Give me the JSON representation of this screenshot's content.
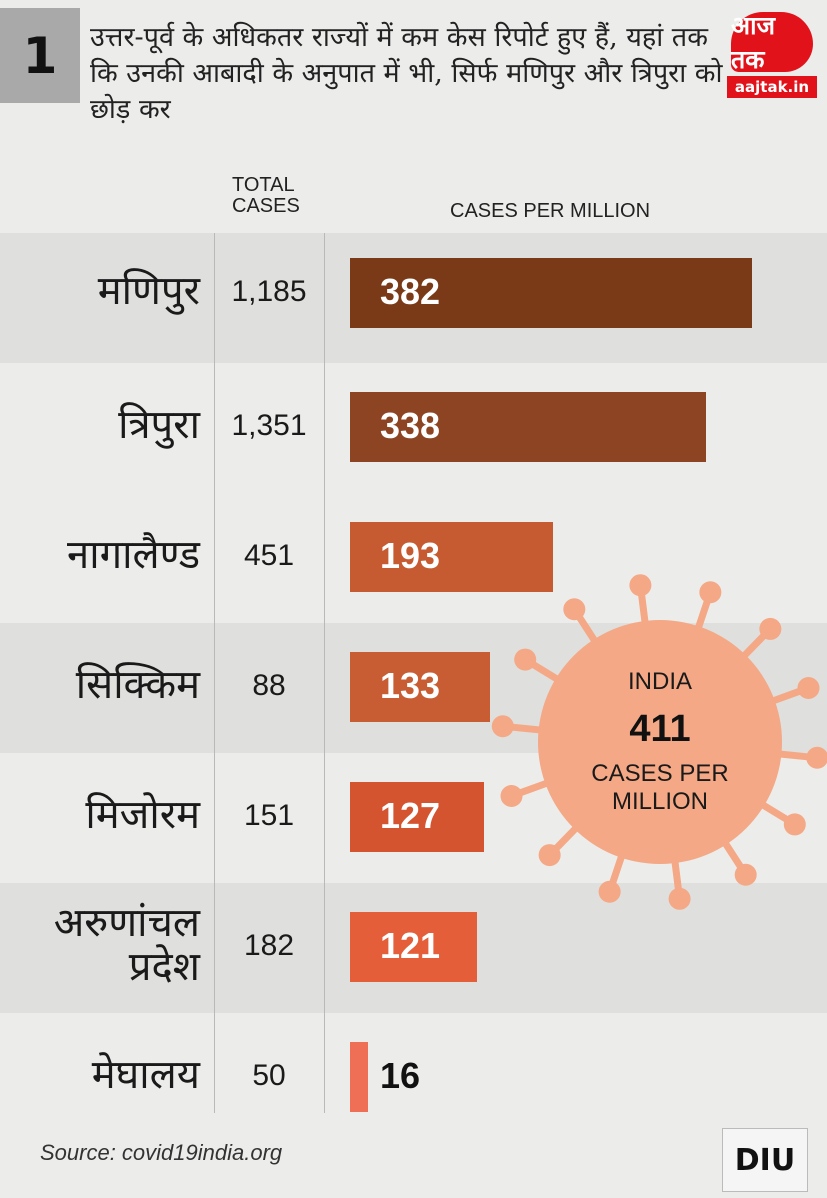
{
  "badge_number": "1",
  "headline": "उत्तर-पूर्व के अधिकतर राज्यों में कम केस रिपोर्ट हुए हैं, यहां तक कि उनकी आबादी के अनुपात में भी, सिर्फ मणिपुर और त्रिपुरा को छोड़ कर",
  "logo": {
    "mark": "आज तक",
    "url": "aajtak.in"
  },
  "column_headers": {
    "total": "TOTAL CASES",
    "per_million": "CASES PER MILLION"
  },
  "india_callout": {
    "top": "INDIA",
    "value": "411",
    "line1": "CASES PER",
    "line2": "MILLION",
    "color": "#f4a885"
  },
  "source": "Source: covid19india.org",
  "diu_logo": "DIU",
  "chart_data": {
    "type": "bar",
    "orientation": "horizontal",
    "categories": [
      "मणिपुर",
      "त्रिपुरा",
      "नागालैण्ड",
      "सिक्किम",
      "मिजोरम",
      "अरुणांचल प्रदेश",
      "मेघालय"
    ],
    "total_cases": [
      "1,185",
      "1,351",
      "451",
      "88",
      "151",
      "182",
      "50"
    ],
    "values": [
      382,
      338,
      193,
      133,
      127,
      121,
      16
    ],
    "labels": [
      "382",
      "338",
      "193",
      "133",
      "127",
      "121",
      "16"
    ],
    "colors": [
      "#7a3a18",
      "#8c4422",
      "#c65a30",
      "#c85d33",
      "#d55430",
      "#e45e3a",
      "#ef6f56"
    ],
    "xlim": [
      0,
      411
    ],
    "grid": false
  }
}
